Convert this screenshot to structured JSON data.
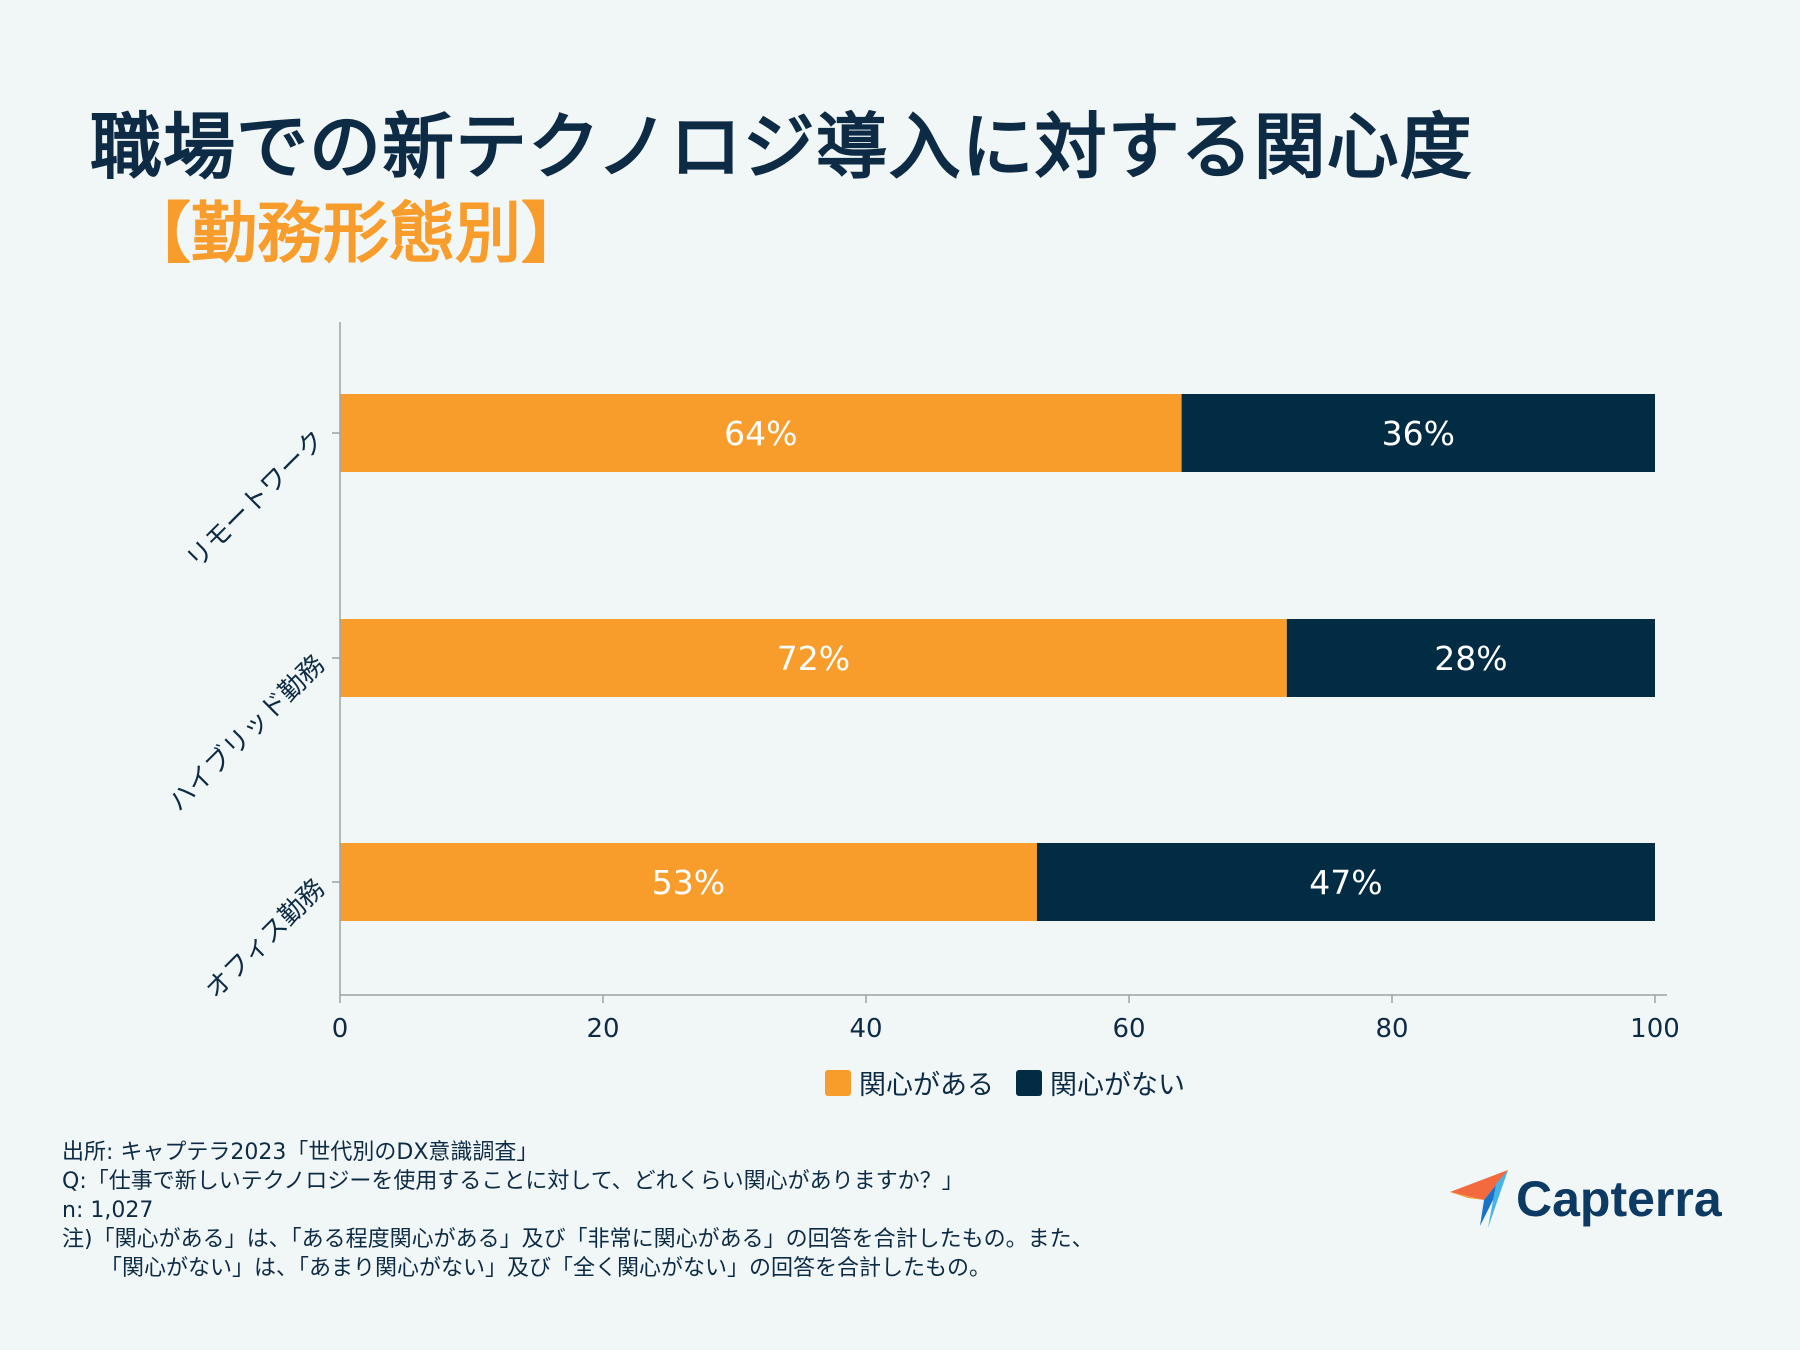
{
  "title": "職場での新テクノロジ導入に対する関心度",
  "subtitle": "【勤務形態別】",
  "colors": {
    "accent": "#f89d2c",
    "dark": "#022b44",
    "text": "#0d2b45"
  },
  "chart_data": {
    "type": "bar",
    "orientation": "horizontal",
    "stacked": true,
    "categories": [
      "リモートワーク",
      "ハイブリッド勤務",
      "オフィス勤務"
    ],
    "series": [
      {
        "name": "関心がある",
        "values": [
          64,
          72,
          53
        ],
        "labels": [
          "64%",
          "72%",
          "53%"
        ],
        "color": "#f89d2c"
      },
      {
        "name": "関心がない",
        "values": [
          36,
          28,
          47
        ],
        "labels": [
          "36%",
          "28%",
          "47%"
        ],
        "color": "#022b44"
      }
    ],
    "xlim": [
      0,
      100
    ],
    "xticks": [
      "0",
      "20",
      "40",
      "60",
      "80",
      "100"
    ],
    "legend_position": "bottom-center"
  },
  "legend": [
    {
      "label": "関心がある",
      "color": "#f89d2c"
    },
    {
      "label": "関心がない",
      "color": "#022b44"
    }
  ],
  "notes": {
    "source": "出所: キャプテラ2023「世代別のDX意識調査」",
    "question": "Q:「仕事で新しいテクノロジーを使用することに対して、どれくらい関心がありますか？」",
    "sample": "n: 1,027",
    "note1": "注)「関心がある」は、「ある程度関心がある」及び「非常に関心がある」の回答を合計したもの。また、",
    "note2": "「関心がない」は、「あまり関心がない」及び「全く関心がない」の回答を合計したもの。"
  },
  "logo": {
    "text": "Capterra",
    "icon": "capterra-arrow-icon"
  }
}
